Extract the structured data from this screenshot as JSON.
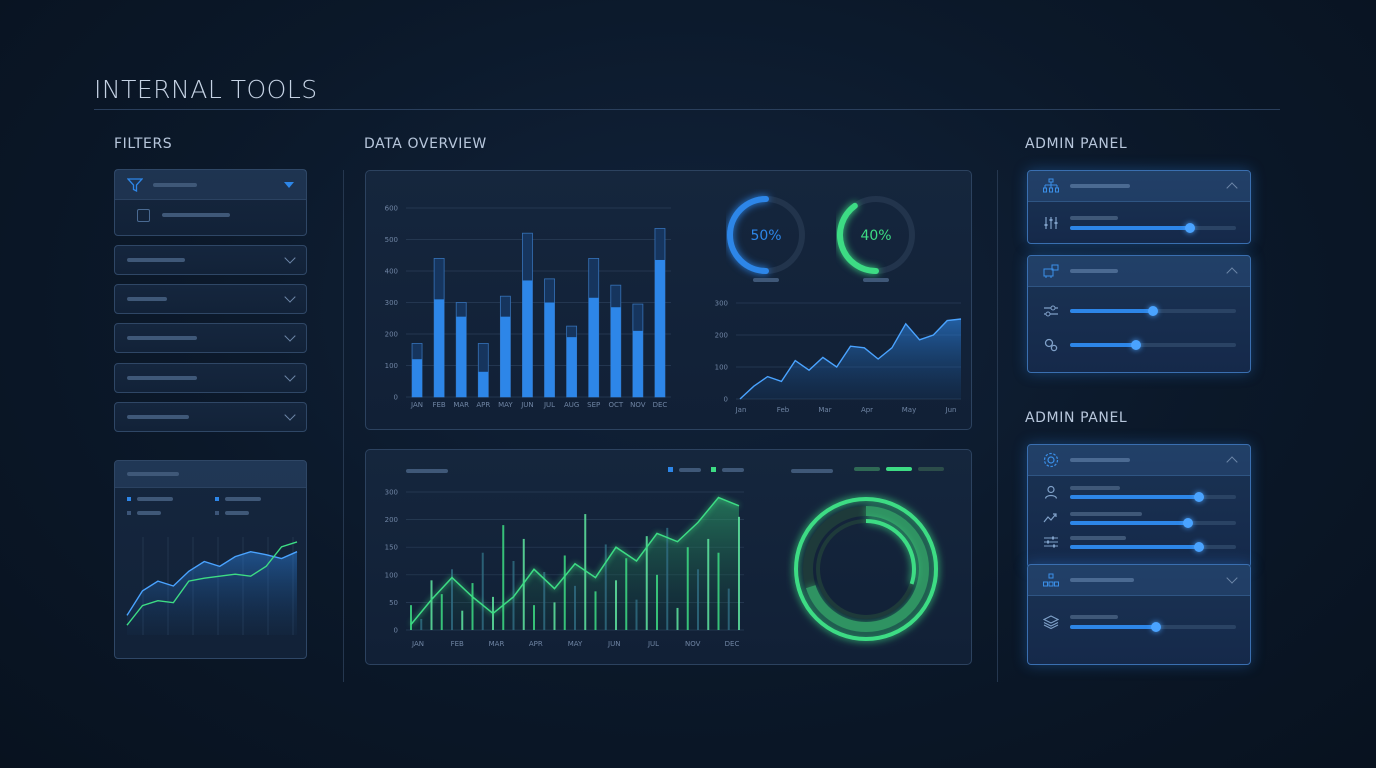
{
  "header": {
    "title": "INTERNAL TOOLS"
  },
  "sections": {
    "filters": "FILTERS",
    "overview": "DATA OVERVIEW",
    "admin_1": "ADMIN PANEL",
    "admin_2": "ADMIN PANEL"
  },
  "colors": {
    "blue": "#2d86e8",
    "green": "#3ddc84",
    "bg": "#0b1829"
  },
  "filters": {
    "dropdown_count": 5,
    "icons": [
      "filter-icon",
      "checkbox-icon"
    ]
  },
  "chart_data": [
    {
      "type": "bar",
      "categories": [
        "JAN",
        "FEB",
        "MAR",
        "APR",
        "MAY",
        "JUN",
        "JUL",
        "AUG",
        "SEP",
        "OCT",
        "NOV",
        "DEC"
      ],
      "series": [
        {
          "values": [
            120,
            310,
            255,
            80,
            255,
            370,
            300,
            190,
            315,
            285,
            210,
            435
          ]
        },
        {
          "values": [
            170,
            440,
            300,
            170,
            320,
            520,
            375,
            225,
            440,
            355,
            295,
            535
          ]
        }
      ],
      "y_ticks": [
        "600",
        "500",
        "400",
        "300",
        "200",
        "100",
        "0"
      ],
      "ylim": [
        0,
        600
      ]
    },
    {
      "type": "pie",
      "gauges": [
        {
          "label": "50%",
          "value": 50,
          "color": "#2d86e8"
        },
        {
          "label": "40%",
          "value": 40,
          "color": "#3ddc84"
        }
      ]
    },
    {
      "type": "area",
      "x_ticks": [
        "Jan",
        "Feb",
        "Mar",
        "Apr",
        "May",
        "Jun"
      ],
      "y_ticks": [
        "300",
        "200",
        "100",
        "0"
      ],
      "values": [
        0,
        40,
        70,
        55,
        120,
        90,
        130,
        100,
        165,
        160,
        125,
        160,
        235,
        185,
        200,
        245,
        250
      ],
      "ylim": [
        0,
        300
      ]
    },
    {
      "type": "area",
      "x_ticks": [
        "JAN",
        "FEB",
        "MAR",
        "APR",
        "MAY",
        "JUN",
        "JUL",
        "NOV",
        "DEC"
      ],
      "y_ticks": [
        "300",
        "200",
        "150",
        "100",
        "50",
        "0"
      ],
      "values": [
        10,
        55,
        95,
        60,
        30,
        60,
        110,
        75,
        120,
        95,
        150,
        125,
        175,
        160,
        195,
        240,
        225
      ],
      "bars": [
        45,
        20,
        90,
        65,
        110,
        35,
        85,
        140,
        60,
        190,
        125,
        165,
        45,
        105,
        50,
        135,
        80,
        210,
        70,
        155,
        90,
        130,
        55,
        170,
        100,
        185,
        40,
        150,
        110,
        165,
        140,
        75,
        205
      ],
      "ylim": [
        0,
        250
      ]
    },
    {
      "type": "line",
      "legend": [
        "",
        ""
      ],
      "series": [
        {
          "values": [
            20,
            45,
            55,
            50,
            65,
            75,
            70,
            80,
            85,
            82,
            78,
            85
          ]
        },
        {
          "values": [
            10,
            30,
            35,
            33,
            55,
            58,
            60,
            62,
            60,
            70,
            90,
            95
          ]
        }
      ],
      "ylim": [
        0,
        100
      ]
    },
    {
      "type": "pie",
      "rings": [
        {
          "value": 100,
          "color": "#3ddc84"
        },
        {
          "value": 70,
          "color": "#3ddc84"
        },
        {
          "value": 30,
          "color": "#3ddc84"
        }
      ]
    }
  ],
  "admin_panels": [
    {
      "icon": "network-icon",
      "rows": [
        {
          "icon": "sliders-icon",
          "value": 72
        }
      ]
    },
    {
      "icon": "machine-icon",
      "rows": [
        {
          "icon": "tune-icon",
          "value": 50
        },
        {
          "icon": "gear-pair-icon",
          "value": 40
        }
      ]
    },
    {
      "icon": "settings-icon",
      "rows": [
        {
          "icon": "user-icon",
          "value": 78
        },
        {
          "icon": "trend-icon",
          "value": 71
        },
        {
          "icon": "adjust-icon",
          "value": 78
        }
      ]
    },
    {
      "icon": "hierarchy-icon",
      "rows": [
        {
          "icon": "layers-icon",
          "value": 52
        }
      ]
    }
  ]
}
